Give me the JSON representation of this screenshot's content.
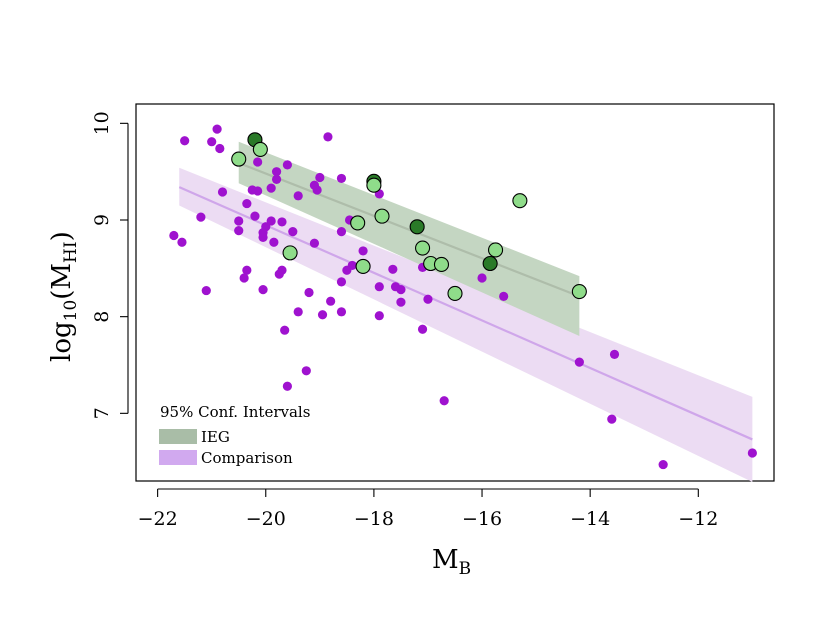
{
  "chart_data": {
    "type": "scatter",
    "title": "",
    "xlabel": "M",
    "xlabel_sub": "B",
    "ylabel": "log",
    "ylabel_base": "10",
    "ylabel_mid": "(M",
    "ylabel_sub": "HI",
    "ylabel_close": ")",
    "xlim": [
      -22.4,
      -10.6
    ],
    "ylim": [
      6.3,
      10.2
    ],
    "xticks": [
      -22,
      -20,
      -18,
      -16,
      -14,
      -12
    ],
    "xtick_labels": [
      "−22",
      "−20",
      "−18",
      "−16",
      "−14",
      "−12"
    ],
    "yticks": [
      7,
      8,
      9,
      10
    ],
    "ytick_labels": [
      "7",
      "8",
      "9",
      "10"
    ],
    "grid": false,
    "legend": {
      "position": "bottom-left",
      "title": "95% Conf. Intervals",
      "entries": [
        {
          "label": "IEG",
          "color": "#a9bda7"
        },
        {
          "label": "Comparison",
          "color": "#d1a9ef"
        }
      ]
    },
    "series": [
      {
        "name": "Comparison",
        "color": "#9f12cf",
        "fit": {
          "x": [
            -21.6,
            -11.0
          ],
          "y": [
            9.34,
            6.73
          ],
          "line_color": "#cfa6ea"
        },
        "band": {
          "x": [
            -21.6,
            -11.0
          ],
          "upper": [
            9.54,
            7.17
          ],
          "lower": [
            9.15,
            6.29
          ],
          "color": "#ecdcf3"
        },
        "points": [
          [
            -21.5,
            9.82
          ],
          [
            -20.9,
            9.94
          ],
          [
            -21.0,
            9.81
          ],
          [
            -20.85,
            9.74
          ],
          [
            -20.2,
            9.84
          ],
          [
            -18.85,
            9.86
          ],
          [
            -20.15,
            9.6
          ],
          [
            -19.6,
            9.57
          ],
          [
            -19.8,
            9.5
          ],
          [
            -19.8,
            9.42
          ],
          [
            -19.0,
            9.44
          ],
          [
            -18.6,
            9.43
          ],
          [
            -19.1,
            9.36
          ],
          [
            -19.05,
            9.31
          ],
          [
            -20.8,
            9.29
          ],
          [
            -20.25,
            9.31
          ],
          [
            -20.15,
            9.3
          ],
          [
            -19.9,
            9.33
          ],
          [
            -19.4,
            9.25
          ],
          [
            -17.9,
            9.27
          ],
          [
            -20.35,
            9.17
          ],
          [
            -21.2,
            9.03
          ],
          [
            -20.2,
            9.04
          ],
          [
            -20.5,
            8.99
          ],
          [
            -19.9,
            8.99
          ],
          [
            -19.7,
            8.98
          ],
          [
            -20.0,
            8.93
          ],
          [
            -20.5,
            8.89
          ],
          [
            -20.05,
            8.87
          ],
          [
            -19.5,
            8.88
          ],
          [
            -18.45,
            9.0
          ],
          [
            -18.6,
            8.88
          ],
          [
            -21.7,
            8.84
          ],
          [
            -21.55,
            8.77
          ],
          [
            -20.05,
            8.82
          ],
          [
            -19.85,
            8.77
          ],
          [
            -19.1,
            8.76
          ],
          [
            -18.2,
            8.68
          ],
          [
            -18.4,
            8.53
          ],
          [
            -18.5,
            8.48
          ],
          [
            -20.35,
            8.48
          ],
          [
            -20.4,
            8.4
          ],
          [
            -19.7,
            8.48
          ],
          [
            -19.75,
            8.44
          ],
          [
            -17.65,
            8.49
          ],
          [
            -17.1,
            8.51
          ],
          [
            -16.0,
            8.4
          ],
          [
            -18.6,
            8.36
          ],
          [
            -17.6,
            8.31
          ],
          [
            -17.5,
            8.28
          ],
          [
            -17.9,
            8.31
          ],
          [
            -21.1,
            8.27
          ],
          [
            -20.05,
            8.28
          ],
          [
            -19.2,
            8.25
          ],
          [
            -18.8,
            8.16
          ],
          [
            -17.5,
            8.15
          ],
          [
            -17.0,
            8.18
          ],
          [
            -15.6,
            8.21
          ],
          [
            -19.4,
            8.05
          ],
          [
            -18.95,
            8.02
          ],
          [
            -18.6,
            8.05
          ],
          [
            -17.9,
            8.01
          ],
          [
            -19.65,
            7.86
          ],
          [
            -17.1,
            7.87
          ],
          [
            -14.2,
            7.53
          ],
          [
            -13.55,
            7.61
          ],
          [
            -19.25,
            7.44
          ],
          [
            -19.6,
            7.28
          ],
          [
            -16.7,
            7.13
          ],
          [
            -13.6,
            6.94
          ],
          [
            -12.65,
            6.47
          ],
          [
            -11.0,
            6.59
          ]
        ]
      },
      {
        "name": "IEG",
        "color": "#8fdc8a",
        "color_dark": "#2a7a28",
        "fit": {
          "x": [
            -20.5,
            -14.2
          ],
          "y": [
            9.59,
            8.21
          ],
          "line_color": "#aebdaa"
        },
        "band": {
          "x": [
            -20.5,
            -14.2
          ],
          "upper": [
            9.81,
            8.42
          ],
          "lower": [
            9.38,
            7.8
          ],
          "color": "#c4d6c2"
        },
        "points": [
          {
            "x": -20.2,
            "y": 9.83,
            "shade": "dark"
          },
          {
            "x": -20.1,
            "y": 9.73,
            "shade": "light"
          },
          {
            "x": -20.5,
            "y": 9.63,
            "shade": "light"
          },
          {
            "x": -18.0,
            "y": 9.4,
            "shade": "dark"
          },
          {
            "x": -18.0,
            "y": 9.36,
            "shade": "light"
          },
          {
            "x": -15.3,
            "y": 9.2,
            "shade": "light"
          },
          {
            "x": -17.85,
            "y": 9.04,
            "shade": "light"
          },
          {
            "x": -18.3,
            "y": 8.97,
            "shade": "light"
          },
          {
            "x": -17.2,
            "y": 8.93,
            "shade": "dark"
          },
          {
            "x": -17.1,
            "y": 8.71,
            "shade": "light"
          },
          {
            "x": -15.75,
            "y": 8.69,
            "shade": "light"
          },
          {
            "x": -19.55,
            "y": 8.66,
            "shade": "light"
          },
          {
            "x": -16.95,
            "y": 8.55,
            "shade": "light"
          },
          {
            "x": -16.75,
            "y": 8.54,
            "shade": "light"
          },
          {
            "x": -15.85,
            "y": 8.55,
            "shade": "dark"
          },
          {
            "x": -18.2,
            "y": 8.52,
            "shade": "light"
          },
          {
            "x": -16.5,
            "y": 8.24,
            "shade": "light"
          },
          {
            "x": -14.2,
            "y": 8.26,
            "shade": "light"
          }
        ]
      }
    ]
  }
}
